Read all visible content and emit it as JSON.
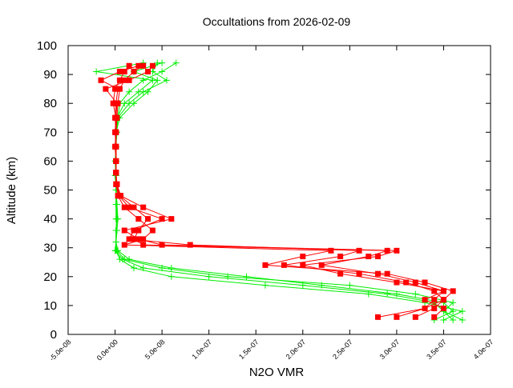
{
  "chart_data": {
    "type": "scatter",
    "title": "Occultations from 2026-02-09",
    "xlabel": "N2O VMR",
    "ylabel": "Altitude (km)",
    "xlim": [
      -5e-08,
      4e-07
    ],
    "ylim": [
      0,
      100
    ],
    "xticks": [
      "-5.0e-08",
      "0.0e+00",
      "5.0e-08",
      "1.0e-07",
      "1.5e-07",
      "2.0e-07",
      "2.5e-07",
      "3.0e-07",
      "3.5e-07",
      "4.0e-07"
    ],
    "yticks": [
      "0",
      "10",
      "20",
      "30",
      "40",
      "50",
      "60",
      "70",
      "80",
      "90",
      "100"
    ],
    "grid": false,
    "legend": "none",
    "colors": {
      "red_series": "#ff0000",
      "green_series": "#00ee00"
    },
    "red_profiles": {
      "marker": "filled-square",
      "altitudes": [
        6,
        9,
        12,
        15,
        18,
        21,
        24,
        27,
        29,
        31,
        33,
        36,
        40,
        44,
        48,
        52,
        56,
        60,
        65,
        70,
        75,
        80,
        85,
        88,
        91,
        93
      ],
      "profiles": [
        [
          3e-07,
          3.3e-07,
          3.4e-07,
          3.5e-07,
          3.2e-07,
          2.8e-07,
          2.2e-07,
          2.7e-07,
          2.9e-07,
          3e-08,
          2e-08,
          2.5e-08,
          3.5e-08,
          2e-08,
          5e-09,
          2e-09,
          1e-09,
          1e-09,
          1e-09,
          1e-09,
          2e-09,
          3e-09,
          5e-09,
          1e-08,
          2e-08,
          3e-08
        ],
        [
          3.2e-07,
          3.4e-07,
          3.5e-07,
          3.4e-07,
          3.1e-07,
          2.6e-07,
          1.8e-07,
          2.4e-07,
          2.6e-07,
          8e-08,
          1.5e-08,
          2e-08,
          5e-08,
          1.5e-08,
          4e-09,
          1.5e-09,
          1e-09,
          1e-09,
          1e-09,
          0.0,
          1e-09,
          -2e-09,
          0.0,
          5e-09,
          1e-08,
          1.5e-08
        ],
        [
          2.8e-07,
          3.3e-07,
          3.5e-07,
          3.6e-07,
          3.3e-07,
          2.9e-07,
          1.6e-07,
          2e-07,
          2.3e-07,
          1e-08,
          3e-08,
          4e-08,
          2.5e-08,
          1e-08,
          3e-09,
          1e-09,
          1e-09,
          1e-09,
          0.0,
          1e-09,
          1e-09,
          2e-09,
          -1e-08,
          1.5e-08,
          3.5e-08,
          4e-08
        ],
        [
          3.4e-07,
          3.5e-07,
          3.3e-07,
          3.5e-07,
          3e-07,
          2.4e-07,
          2e-07,
          2.8e-07,
          3e-07,
          5e-08,
          2.5e-08,
          1e-08,
          6e-08,
          3e-08,
          6e-09,
          2e-09,
          1e-09,
          1e-09,
          1e-09,
          1e-09,
          0.0,
          1e-09,
          3e-09,
          -1.5e-08,
          5e-09,
          2.5e-08
        ]
      ]
    },
    "green_profiles": {
      "marker": "plus",
      "altitudes": [
        5,
        8,
        11,
        14,
        17,
        20,
        23,
        26,
        29,
        32,
        36,
        40,
        45,
        50,
        55,
        60,
        65,
        70,
        75,
        80,
        84,
        88,
        91,
        94
      ],
      "profiles": [
        [
          3.7e-07,
          3.5e-07,
          3.6e-07,
          3.2e-07,
          2.5e-07,
          1.2e-07,
          5e-08,
          1e-08,
          2e-09,
          1e-09,
          2e-09,
          3e-09,
          2e-09,
          1e-09,
          1e-09,
          1e-09,
          1e-09,
          2e-09,
          3e-09,
          5e-09,
          1.5e-08,
          3e-08,
          5e-08,
          6.5e-08
        ],
        [
          3.6e-07,
          3.5e-07,
          3.4e-07,
          2.9e-07,
          2e-07,
          1e-07,
          3e-08,
          8e-09,
          0.0,
          1e-09,
          1e-09,
          2e-09,
          1e-09,
          1e-09,
          1e-09,
          0.0,
          1e-09,
          1e-09,
          2e-09,
          1e-08,
          2.5e-08,
          4e-08,
          -2e-08,
          3e-08
        ],
        [
          3.5e-07,
          3.7e-07,
          3.3e-07,
          2.7e-07,
          1.6e-07,
          6e-08,
          2e-08,
          5e-09,
          1e-09,
          1e-09,
          2e-09,
          1e-09,
          1e-09,
          1e-09,
          0.0,
          1e-09,
          1e-09,
          1e-09,
          5e-09,
          2e-08,
          3.5e-08,
          4.5e-08,
          2e-08,
          5e-08
        ],
        [
          3.4e-07,
          3.6e-07,
          3.5e-07,
          3e-07,
          2.2e-07,
          1.4e-07,
          6e-08,
          1.5e-08,
          3e-09,
          1e-09,
          1e-09,
          2e-09,
          2e-09,
          1e-09,
          1e-09,
          1e-09,
          0.0,
          1e-09,
          3e-09,
          1.5e-08,
          3e-08,
          5.5e-08,
          4e-08,
          4.5e-08
        ]
      ]
    }
  }
}
